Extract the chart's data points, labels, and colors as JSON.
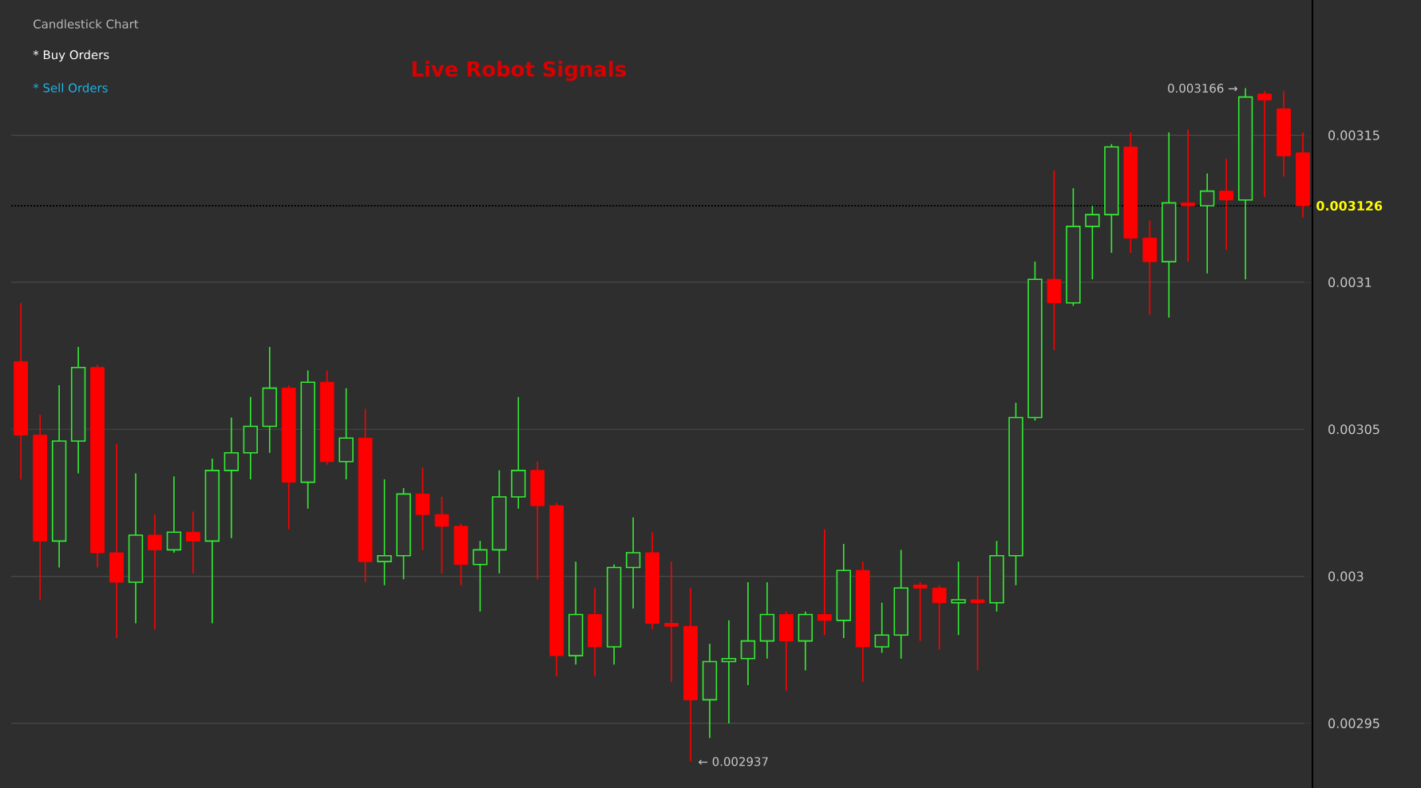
{
  "chart_data": {
    "type": "candlestick",
    "title": "Live Robot Signals",
    "annotations": [
      "Candlestick Chart",
      "* Buy Orders",
      "* Sell Orders",
      "0.003166 →",
      "← 0.002937"
    ],
    "categories": [
      null,
      null,
      null,
      null,
      null,
      null,
      null,
      null,
      null,
      null,
      null,
      null,
      null,
      null,
      null,
      null,
      null,
      null,
      null,
      null,
      null,
      null,
      null,
      null,
      null,
      null,
      null,
      null,
      null,
      null,
      null,
      null,
      null,
      null,
      null,
      null,
      null,
      null,
      null,
      null,
      null,
      null,
      null,
      null,
      null,
      null,
      null,
      null,
      null,
      null,
      null,
      null,
      null,
      null,
      null,
      null,
      null,
      null,
      null,
      null,
      null,
      null,
      null,
      null,
      null,
      null,
      null,
      null
    ],
    "ohlc": [
      [
        0.003073,
        0.003093,
        0.003033,
        0.003048
      ],
      [
        0.003048,
        0.003055,
        0.002992,
        0.003012
      ],
      [
        0.003012,
        0.003065,
        0.003003,
        0.003046
      ],
      [
        0.003046,
        0.003078,
        0.003035,
        0.003071
      ],
      [
        0.003071,
        0.003072,
        0.003003,
        0.003008
      ],
      [
        0.003008,
        0.003045,
        0.002979,
        0.002998
      ],
      [
        0.002998,
        0.003035,
        0.002984,
        0.003014
      ],
      [
        0.003014,
        0.003021,
        0.002982,
        0.003009
      ],
      [
        0.003009,
        0.003034,
        0.003008,
        0.003015
      ],
      [
        0.003015,
        0.003022,
        0.003001,
        0.003012
      ],
      [
        0.003012,
        0.00304,
        0.002984,
        0.003036
      ],
      [
        0.003036,
        0.003054,
        0.003013,
        0.003042
      ],
      [
        0.003042,
        0.003061,
        0.003033,
        0.003051
      ],
      [
        0.003051,
        0.003078,
        0.003042,
        0.003064
      ],
      [
        0.003064,
        0.003065,
        0.003016,
        0.003032
      ],
      [
        0.003032,
        0.00307,
        0.003023,
        0.003066
      ],
      [
        0.003066,
        0.00307,
        0.003038,
        0.003039
      ],
      [
        0.003039,
        0.003064,
        0.003033,
        0.003047
      ],
      [
        0.003047,
        0.003057,
        0.002998,
        0.003005
      ],
      [
        0.003005,
        0.003033,
        0.002997,
        0.003007
      ],
      [
        0.003007,
        0.00303,
        0.002999,
        0.003028
      ],
      [
        0.003028,
        0.003037,
        0.003009,
        0.003021
      ],
      [
        0.003021,
        0.003027,
        0.003001,
        0.003017
      ],
      [
        0.003017,
        0.003018,
        0.002997,
        0.003004
      ],
      [
        0.003004,
        0.003012,
        0.002988,
        0.003009
      ],
      [
        0.003009,
        0.003036,
        0.003001,
        0.003027
      ],
      [
        0.003027,
        0.003061,
        0.003023,
        0.003036
      ],
      [
        0.003036,
        0.003039,
        0.002999,
        0.003024
      ],
      [
        0.003024,
        0.003025,
        0.002966,
        0.002973
      ],
      [
        0.002973,
        0.003005,
        0.00297,
        0.002987
      ],
      [
        0.002987,
        0.002996,
        0.002966,
        0.002976
      ],
      [
        0.002976,
        0.003004,
        0.00297,
        0.003003
      ],
      [
        0.003003,
        0.00302,
        0.002989,
        0.003008
      ],
      [
        0.003008,
        0.003015,
        0.002982,
        0.002984
      ],
      [
        0.002984,
        0.003005,
        0.002964,
        0.002983
      ],
      [
        0.002983,
        0.002996,
        0.002937,
        0.002958
      ],
      [
        0.002958,
        0.002977,
        0.002945,
        0.002971
      ],
      [
        0.002971,
        0.002985,
        0.00295,
        0.002972
      ],
      [
        0.002972,
        0.002998,
        0.002963,
        0.002978
      ],
      [
        0.002978,
        0.002998,
        0.002972,
        0.002987
      ],
      [
        0.002987,
        0.002988,
        0.002961,
        0.002978
      ],
      [
        0.002978,
        0.002988,
        0.002968,
        0.002987
      ],
      [
        0.002987,
        0.003016,
        0.00298,
        0.002985
      ],
      [
        0.002985,
        0.003011,
        0.002979,
        0.003002
      ],
      [
        0.003002,
        0.003005,
        0.002964,
        0.002976
      ],
      [
        0.002976,
        0.002991,
        0.002974,
        0.00298
      ],
      [
        0.00298,
        0.003009,
        0.002972,
        0.002996
      ],
      [
        0.002997,
        0.002998,
        0.002978,
        0.002996
      ],
      [
        0.002996,
        0.002997,
        0.002975,
        0.002991
      ],
      [
        0.002991,
        0.003005,
        0.00298,
        0.002992
      ],
      [
        0.002992,
        0.003,
        0.002968,
        0.002991
      ],
      [
        0.002991,
        0.003012,
        0.002988,
        0.003007
      ],
      [
        0.003007,
        0.003059,
        0.002997,
        0.003054
      ],
      [
        0.003054,
        0.003107,
        0.003053,
        0.003101
      ],
      [
        0.003101,
        0.003138,
        0.003077,
        0.003093
      ],
      [
        0.003093,
        0.003132,
        0.003092,
        0.003119
      ],
      [
        0.003119,
        0.003126,
        0.003101,
        0.003123
      ],
      [
        0.003123,
        0.003147,
        0.00311,
        0.003146
      ],
      [
        0.003146,
        0.003151,
        0.00311,
        0.003115
      ],
      [
        0.003115,
        0.003121,
        0.003089,
        0.003107
      ],
      [
        0.003107,
        0.003151,
        0.003088,
        0.003127
      ],
      [
        0.003127,
        0.003152,
        0.003107,
        0.003126
      ],
      [
        0.003126,
        0.003137,
        0.003103,
        0.003131
      ],
      [
        0.003131,
        0.003142,
        0.003111,
        0.003128
      ],
      [
        0.003128,
        0.003166,
        0.003101,
        0.003163
      ],
      [
        0.003164,
        0.003165,
        0.003129,
        0.003162
      ],
      [
        0.003159,
        0.003165,
        0.003136,
        0.003143
      ],
      [
        0.003144,
        0.003151,
        0.003122,
        0.003126
      ]
    ],
    "colors": [
      "#ff0000",
      "#ff0000",
      "#33ee33",
      "#33ee33",
      "#ff0000",
      "#ff0000",
      "#33ee33",
      "#ff0000",
      "#33ee33",
      "#ff0000",
      "#33ee33",
      "#33ee33",
      "#33ee33",
      "#33ee33",
      "#ff0000",
      "#33ee33",
      "#ff0000",
      "#33ee33",
      "#ff0000",
      "#33ee33",
      "#33ee33",
      "#ff0000",
      "#ff0000",
      "#ff0000",
      "#33ee33",
      "#33ee33",
      "#33ee33",
      "#ff0000",
      "#ff0000",
      "#33ee33",
      "#ff0000",
      "#33ee33",
      "#33ee33",
      "#ff0000",
      "#ff0000",
      "#ff0000",
      "#33ee33",
      "#33ee33",
      "#33ee33",
      "#33ee33",
      "#ff0000",
      "#33ee33",
      "#ff0000",
      "#33ee33",
      "#ff0000",
      "#33ee33",
      "#33ee33",
      "#ff0000",
      "#ff0000",
      "#33ee33",
      "#ff0000",
      "#33ee33",
      "#33ee33",
      "#33ee33",
      "#ff0000",
      "#33ee33",
      "#33ee33",
      "#33ee33",
      "#ff0000",
      "#ff0000",
      "#33ee33",
      "#ff0000",
      "#33ee33",
      "#ff0000",
      "#33ee33",
      "#ff0000",
      "#ff0000",
      "#ff0000"
    ],
    "ylim": [
      0.002928,
      0.003196
    ],
    "yticks": [
      0.00295,
      0.003,
      0.00305,
      0.0031,
      0.00315
    ],
    "ref_lines": [
      {
        "axis": "y",
        "value": 0.003126,
        "label": "0.003126",
        "color": "#000000",
        "line_style": "dotted"
      }
    ],
    "grid": "y",
    "tick_labels": "y"
  }
}
